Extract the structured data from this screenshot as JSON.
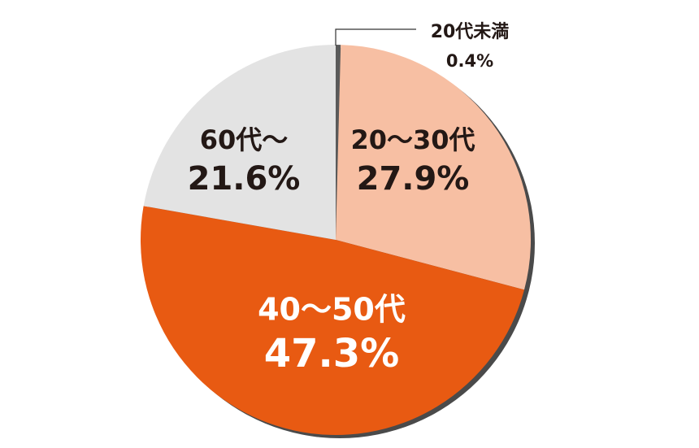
{
  "chart_data": {
    "type": "pie",
    "categories": [
      "20代未満",
      "20〜30代",
      "40〜50代",
      "60代〜"
    ],
    "values": [
      0.4,
      27.9,
      47.3,
      21.6
    ],
    "value_labels": [
      "0.4%",
      "27.9%",
      "47.3%",
      "21.6%"
    ],
    "colors": [
      "#5a5a5a",
      "#f7bfa3",
      "#e85a12",
      "#e3e3e3"
    ]
  }
}
